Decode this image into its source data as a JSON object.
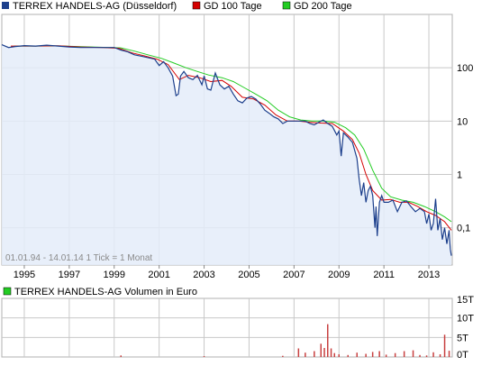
{
  "legend": {
    "main": "TERREX HANDELS-AG (Düsseldorf)",
    "gd100": "GD 100 Tage",
    "gd200": "GD 200 Tage",
    "volume": "TERREX HANDELS-AG Volumen in Euro"
  },
  "footer_note": "01.01.94 - 14.01.14   1 Tick = 1 Monat",
  "colors": {
    "price_line": "#1c3f8c",
    "price_fill": "#e4ecf9",
    "gd100": "#d40000",
    "gd200": "#22cc22",
    "volume_bar": "#c84040",
    "volume_legend": "#22cc22",
    "grid": "#c8c8c8"
  },
  "chart_data": [
    {
      "type": "line",
      "scale": "log",
      "x_ticks": [
        "1995",
        "1997",
        "1999",
        "2001",
        "2003",
        "2005",
        "2007",
        "2009",
        "2011",
        "2013"
      ],
      "y_ticks": [
        {
          "value": 100,
          "label": "100"
        },
        {
          "value": 10,
          "label": "10"
        },
        {
          "value": 1,
          "label": "1"
        },
        {
          "value": 0.1,
          "label": "0,1"
        }
      ],
      "ylim": [
        0.02,
        1000
      ],
      "xlim": [
        1994.0,
        2014.04
      ],
      "grid": true,
      "legend_position": "top",
      "series": [
        {
          "name": "TERREX HANDELS-AG (Düsseldorf)",
          "points": [
            [
              1994.0,
              270
            ],
            [
              1994.3,
              240
            ],
            [
              1994.6,
              250
            ],
            [
              1995.0,
              260
            ],
            [
              1995.5,
              255
            ],
            [
              1996.0,
              265
            ],
            [
              1996.5,
              255
            ],
            [
              1997.0,
              245
            ],
            [
              1997.5,
              240
            ],
            [
              1998.0,
              240
            ],
            [
              1998.5,
              240
            ],
            [
              1999.0,
              240
            ],
            [
              1999.3,
              215
            ],
            [
              1999.6,
              200
            ],
            [
              1999.9,
              175
            ],
            [
              2000.2,
              165
            ],
            [
              2000.5,
              155
            ],
            [
              2000.8,
              145
            ],
            [
              2001.0,
              110
            ],
            [
              2001.2,
              130
            ],
            [
              2001.4,
              100
            ],
            [
              2001.6,
              70
            ],
            [
              2001.75,
              30
            ],
            [
              2001.85,
              32
            ],
            [
              2001.95,
              70
            ],
            [
              2002.1,
              85
            ],
            [
              2002.3,
              65
            ],
            [
              2002.5,
              60
            ],
            [
              2002.7,
              72
            ],
            [
              2002.9,
              48
            ],
            [
              2003.0,
              70
            ],
            [
              2003.15,
              40
            ],
            [
              2003.3,
              38
            ],
            [
              2003.5,
              80
            ],
            [
              2003.7,
              48
            ],
            [
              2003.9,
              40
            ],
            [
              2004.1,
              45
            ],
            [
              2004.3,
              32
            ],
            [
              2004.5,
              24
            ],
            [
              2004.7,
              22
            ],
            [
              2004.9,
              27
            ],
            [
              2005.1,
              29
            ],
            [
              2005.3,
              26
            ],
            [
              2005.5,
              21
            ],
            [
              2005.7,
              16
            ],
            [
              2005.9,
              14
            ],
            [
              2006.1,
              12
            ],
            [
              2006.3,
              11
            ],
            [
              2006.5,
              9
            ],
            [
              2006.7,
              10
            ],
            [
              2006.9,
              10
            ],
            [
              2007.1,
              10
            ],
            [
              2007.3,
              10
            ],
            [
              2007.5,
              10
            ],
            [
              2007.7,
              9
            ],
            [
              2007.9,
              8.5
            ],
            [
              2008.1,
              9.5
            ],
            [
              2008.3,
              10.5
            ],
            [
              2008.5,
              9
            ],
            [
              2008.7,
              8
            ],
            [
              2008.9,
              5.5
            ],
            [
              2009.0,
              6.5
            ],
            [
              2009.1,
              2.2
            ],
            [
              2009.2,
              6
            ],
            [
              2009.4,
              5
            ],
            [
              2009.6,
              4
            ],
            [
              2009.8,
              2
            ],
            [
              2009.9,
              0.8
            ],
            [
              2010.0,
              0.4
            ],
            [
              2010.1,
              0.7
            ],
            [
              2010.2,
              0.3
            ],
            [
              2010.3,
              0.5
            ],
            [
              2010.4,
              0.6
            ],
            [
              2010.5,
              0.4
            ],
            [
              2010.6,
              0.1
            ],
            [
              2010.65,
              0.25
            ],
            [
              2010.7,
              0.07
            ],
            [
              2010.8,
              0.3
            ],
            [
              2010.9,
              0.4
            ],
            [
              2011.0,
              0.3
            ],
            [
              2011.2,
              0.3
            ],
            [
              2011.4,
              0.33
            ],
            [
              2011.6,
              0.2
            ],
            [
              2011.8,
              0.3
            ],
            [
              2012.0,
              0.32
            ],
            [
              2012.2,
              0.25
            ],
            [
              2012.4,
              0.2
            ],
            [
              2012.6,
              0.23
            ],
            [
              2012.8,
              0.2
            ],
            [
              2012.9,
              0.12
            ],
            [
              2013.0,
              0.18
            ],
            [
              2013.1,
              0.09
            ],
            [
              2013.2,
              0.12
            ],
            [
              2013.3,
              0.35
            ],
            [
              2013.4,
              0.09
            ],
            [
              2013.5,
              0.15
            ],
            [
              2013.6,
              0.06
            ],
            [
              2013.7,
              0.1
            ],
            [
              2013.8,
              0.05
            ],
            [
              2013.9,
              0.09
            ],
            [
              2013.95,
              0.04
            ],
            [
              2014.0,
              0.03
            ]
          ]
        },
        {
          "name": "GD 100 Tage",
          "points": [
            [
              1994.4,
              255
            ],
            [
              1995.5,
              255
            ],
            [
              1996.5,
              258
            ],
            [
              1997.5,
              245
            ],
            [
              1998.5,
              240
            ],
            [
              1999.2,
              232
            ],
            [
              1999.8,
              190
            ],
            [
              2000.4,
              165
            ],
            [
              2000.9,
              145
            ],
            [
              2001.4,
              115
            ],
            [
              2001.9,
              60
            ],
            [
              2002.3,
              72
            ],
            [
              2002.8,
              65
            ],
            [
              2003.3,
              55
            ],
            [
              2003.8,
              58
            ],
            [
              2004.2,
              45
            ],
            [
              2004.7,
              28
            ],
            [
              2005.2,
              26
            ],
            [
              2005.7,
              20
            ],
            [
              2006.2,
              13
            ],
            [
              2006.7,
              10
            ],
            [
              2007.2,
              10
            ],
            [
              2007.7,
              9.5
            ],
            [
              2008.2,
              9.2
            ],
            [
              2008.7,
              9
            ],
            [
              2009.2,
              6.5
            ],
            [
              2009.6,
              4.5
            ],
            [
              2009.9,
              2.5
            ],
            [
              2010.2,
              1.0
            ],
            [
              2010.5,
              0.5
            ],
            [
              2010.9,
              0.33
            ],
            [
              2011.3,
              0.34
            ],
            [
              2011.7,
              0.3
            ],
            [
              2012.1,
              0.3
            ],
            [
              2012.5,
              0.25
            ],
            [
              2012.9,
              0.2
            ],
            [
              2013.3,
              0.17
            ],
            [
              2013.7,
              0.13
            ],
            [
              2014.0,
              0.09
            ]
          ]
        },
        {
          "name": "GD 200 Tage",
          "points": [
            [
              1994.55,
              255
            ],
            [
              1995.5,
              255
            ],
            [
              1996.5,
              257
            ],
            [
              1997.5,
              248
            ],
            [
              1998.5,
              242
            ],
            [
              1999.3,
              236
            ],
            [
              1999.9,
              205
            ],
            [
              2000.5,
              175
            ],
            [
              2001.1,
              150
            ],
            [
              2001.6,
              125
            ],
            [
              2002.2,
              100
            ],
            [
              2002.7,
              85
            ],
            [
              2003.2,
              73
            ],
            [
              2003.8,
              65
            ],
            [
              2004.3,
              55
            ],
            [
              2004.8,
              42
            ],
            [
              2005.3,
              32
            ],
            [
              2005.8,
              24
            ],
            [
              2006.3,
              16
            ],
            [
              2006.8,
              12
            ],
            [
              2007.3,
              10.5
            ],
            [
              2007.8,
              10
            ],
            [
              2008.3,
              10
            ],
            [
              2008.8,
              9.5
            ],
            [
              2009.3,
              7.5
            ],
            [
              2009.7,
              5.5
            ],
            [
              2010.1,
              3
            ],
            [
              2010.5,
              1.2
            ],
            [
              2010.9,
              0.55
            ],
            [
              2011.3,
              0.38
            ],
            [
              2011.8,
              0.33
            ],
            [
              2012.3,
              0.3
            ],
            [
              2012.8,
              0.25
            ],
            [
              2013.3,
              0.2
            ],
            [
              2013.7,
              0.16
            ],
            [
              2014.0,
              0.13
            ]
          ]
        }
      ]
    },
    {
      "type": "bar",
      "title": "TERREX HANDELS-AG Volumen in Euro",
      "ylim": [
        0,
        15000
      ],
      "y_ticks": [
        {
          "value": 15000,
          "label": "15T"
        },
        {
          "value": 10000,
          "label": "10T"
        },
        {
          "value": 5000,
          "label": "5T"
        },
        {
          "value": 0,
          "label": "0T"
        }
      ],
      "series": [
        {
          "points": [
            [
              1999.3,
              400
            ],
            [
              2003.0,
              200
            ],
            [
              2006.5,
              300
            ],
            [
              2007.2,
              2200
            ],
            [
              2007.5,
              1100
            ],
            [
              2007.9,
              1500
            ],
            [
              2008.2,
              3400
            ],
            [
              2008.35,
              2300
            ],
            [
              2008.5,
              8400
            ],
            [
              2008.65,
              2200
            ],
            [
              2008.8,
              1000
            ],
            [
              2009.0,
              700
            ],
            [
              2009.4,
              500
            ],
            [
              2009.8,
              1100
            ],
            [
              2010.2,
              800
            ],
            [
              2010.5,
              1300
            ],
            [
              2010.8,
              1500
            ],
            [
              2011.1,
              600
            ],
            [
              2011.5,
              1000
            ],
            [
              2011.9,
              1500
            ],
            [
              2012.3,
              1700
            ],
            [
              2012.6,
              500
            ],
            [
              2012.9,
              400
            ],
            [
              2013.2,
              1200
            ],
            [
              2013.5,
              700
            ],
            [
              2013.7,
              5700
            ],
            [
              2013.9,
              1600
            ]
          ]
        }
      ]
    }
  ]
}
